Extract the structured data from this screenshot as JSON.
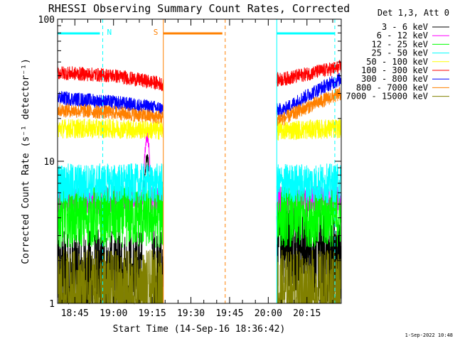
{
  "chart_data": {
    "type": "line",
    "title": "RHESSI Observing Summary Count Rates, Corrected",
    "xlabel": "Start Time (14-Sep-16 18:36:42)",
    "ylabel": "Corrected Count Rate (s⁻¹ detector⁻¹)",
    "y_scale": "log",
    "ylim": [
      1,
      100
    ],
    "y_ticks": [
      {
        "v": 1,
        "label": "1"
      },
      {
        "v": 10,
        "label": "10"
      },
      {
        "v": 100,
        "label": "100"
      }
    ],
    "xlim_minutes": [
      -6.7,
      103.3
    ],
    "x_ticks": [
      {
        "m": 0,
        "label": "18:45"
      },
      {
        "m": 15,
        "label": "19:00"
      },
      {
        "m": 30,
        "label": "19:15"
      },
      {
        "m": 45,
        "label": "19:30"
      },
      {
        "m": 60,
        "label": "19:45"
      },
      {
        "m": 75,
        "label": "20:00"
      },
      {
        "m": 90,
        "label": "20:15"
      }
    ],
    "legend_title": "Det 1,3, Att 0",
    "legend_position": "right",
    "series": [
      {
        "name": "3 - 6 keV",
        "color": "#000000",
        "mean": [
          1.5,
          1.5,
          1.5,
          1.6,
          3.0,
          1.8
        ],
        "noise": 0.35,
        "flare_peak": 10.5
      },
      {
        "name": "6 - 12 keV",
        "color": "#ff00ff",
        "mean": [
          5.3,
          5.3,
          5.3,
          5.3,
          5.4,
          5.3
        ],
        "noise": 0.1,
        "flare_peak": 15
      },
      {
        "name": "12 - 25 keV",
        "color": "#00ff00",
        "mean": [
          4.1,
          4.1,
          4.0,
          4.1,
          4.1,
          4.1
        ],
        "noise": 0.22,
        "flare_peak": null
      },
      {
        "name": "25 - 50 keV",
        "color": "#00ffff",
        "mean": [
          7.0,
          7.0,
          7.0,
          7.0,
          7.0,
          7.0
        ],
        "noise": 0.14,
        "flare_peak": null
      },
      {
        "name": "50 - 100 keV",
        "color": "#ffff00",
        "mean": [
          17,
          17,
          16.5,
          16,
          16.5,
          17
        ],
        "noise": 0.07,
        "flare_peak": null
      },
      {
        "name": "100 - 300 keV",
        "color": "#ff0000",
        "mean": [
          42,
          40,
          34,
          33,
          38,
          46
        ],
        "noise": 0.05,
        "flare_peak": null
      },
      {
        "name": "300 - 800 keV",
        "color": "#0000ff",
        "mean": [
          28,
          26,
          23,
          22,
          23,
          38
        ],
        "noise": 0.05,
        "flare_peak": null
      },
      {
        "name": "800 - 7000 keV",
        "color": "#ff8000",
        "mean": [
          23,
          22,
          20,
          19,
          20,
          30
        ],
        "noise": 0.05,
        "flare_peak": null
      },
      {
        "name": "7000 - 15000 keV",
        "color": "#808000",
        "mean": [
          1.2,
          1.2,
          1.2,
          1.2,
          1.2,
          1.2
        ],
        "noise": 0.3,
        "flare_peak": null
      }
    ],
    "flare_peak_time_minutes": 28,
    "data_segments_minutes": [
      [
        -6.7,
        34.3
      ],
      [
        78.3,
        103.3
      ]
    ],
    "gap_minutes": [
      34.3,
      78.3
    ],
    "annotations": [
      {
        "label": "N",
        "color": "#00ffff",
        "start_m": -6.7,
        "end_m": 10.8,
        "style": "night"
      },
      {
        "label": "S",
        "color": "#ff8000",
        "start_m": 34.3,
        "end_m": 58.3,
        "style": "saa"
      },
      {
        "label": "",
        "color": "#00ffff",
        "start_m": 78.3,
        "end_m": 100.8,
        "style": "night"
      }
    ]
  },
  "footer_date": "1-Sep-2022 10:48"
}
